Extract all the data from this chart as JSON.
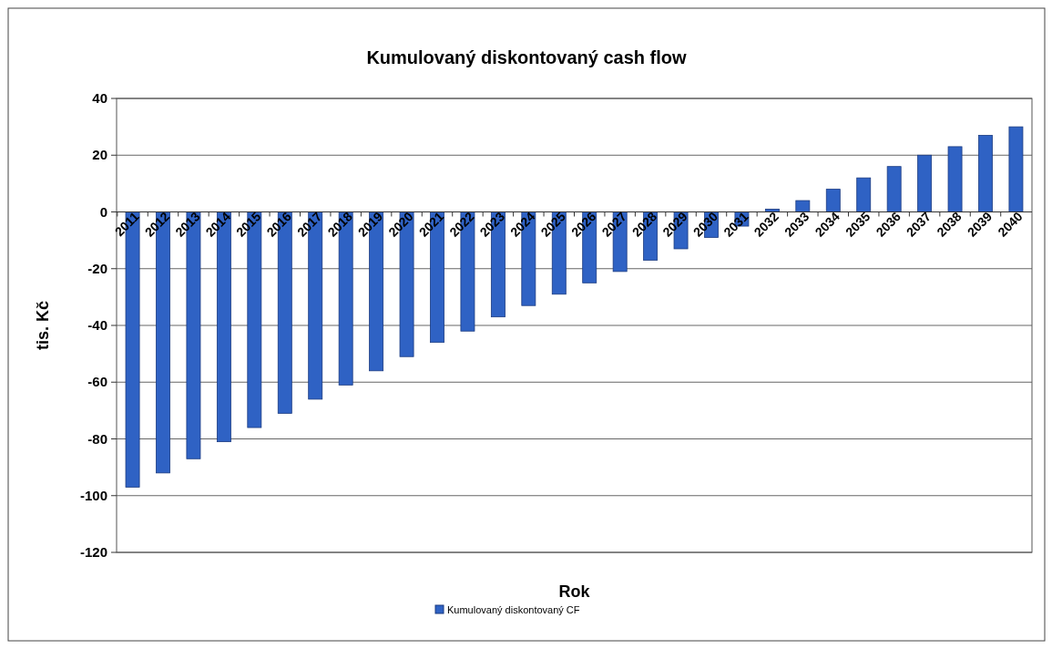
{
  "chart_data": {
    "type": "bar",
    "title": "Kumulovaný diskontovaný cash flow",
    "xlabel": "Rok",
    "ylabel": "tis. Kč",
    "categories": [
      "2011",
      "2012",
      "2013",
      "2014",
      "2015",
      "2016",
      "2017",
      "2018",
      "2019",
      "2020",
      "2021",
      "2022",
      "2023",
      "2024",
      "2025",
      "2026",
      "2027",
      "2028",
      "2029",
      "2030",
      "2031",
      "2032",
      "2033",
      "2034",
      "2035",
      "2036",
      "2037",
      "2038",
      "2039",
      "2040"
    ],
    "series": [
      {
        "name": "Kumulovaný diskontovaný CF",
        "color": "#2f62c4",
        "values": [
          -97,
          -92,
          -87,
          -81,
          -76,
          -71,
          -66,
          -61,
          -56,
          -51,
          -46,
          -42,
          -37,
          -33,
          -29,
          -25,
          -21,
          -17,
          -13,
          -9,
          -5,
          1,
          4,
          8,
          12,
          16,
          20,
          23,
          27,
          30
        ]
      }
    ],
    "ylim": [
      -120,
      40
    ],
    "yticks": [
      -120,
      -100,
      -80,
      -60,
      -40,
      -20,
      0,
      20,
      40
    ],
    "grid": "y",
    "legend": "bottom"
  }
}
